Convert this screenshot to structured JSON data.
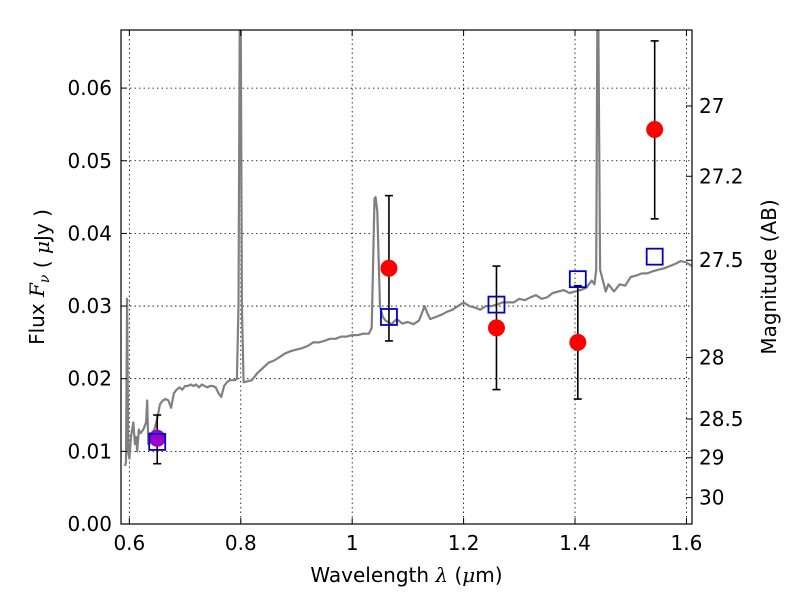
{
  "chart_data": {
    "type": "scatter",
    "xlabel_prefix": "Wavelength",
    "xlabel_symbol": "λ",
    "xlabel_unit_open": "(",
    "xlabel_unit_mu": "μ",
    "xlabel_unit_close": "m)",
    "ylabel_prefix": "Flux",
    "ylabel_symbol": "F",
    "ylabel_subscript": "ν",
    "ylabel_unit_open": "(",
    "ylabel_unit_mu": "μ",
    "ylabel_unit_close": "Jy )",
    "y2label": "Magnitude (AB)",
    "xlim": [
      0.585,
      1.61
    ],
    "ylim": [
      0.0,
      0.068
    ],
    "grid": true,
    "xticks": [
      {
        "value": 0.6,
        "label": "0.6"
      },
      {
        "value": 0.8,
        "label": "0.8"
      },
      {
        "value": 1.0,
        "label": "1"
      },
      {
        "value": 1.2,
        "label": "1.2"
      },
      {
        "value": 1.4,
        "label": "1.4"
      },
      {
        "value": 1.6,
        "label": "1.6"
      }
    ],
    "yticks": [
      {
        "value": 0.0,
        "label": "0.00"
      },
      {
        "value": 0.01,
        "label": "0.01"
      },
      {
        "value": 0.02,
        "label": "0.02"
      },
      {
        "value": 0.03,
        "label": "0.03"
      },
      {
        "value": 0.04,
        "label": "0.04"
      },
      {
        "value": 0.05,
        "label": "0.05"
      },
      {
        "value": 0.06,
        "label": "0.06"
      }
    ],
    "y2ticks": [
      {
        "mag": 27,
        "label": "27"
      },
      {
        "mag": 27.2,
        "label": "27.2"
      },
      {
        "mag": 27.5,
        "label": "27.5"
      },
      {
        "mag": 28,
        "label": "28"
      },
      {
        "mag": 28.5,
        "label": "28.5"
      },
      {
        "mag": 29,
        "label": "29"
      },
      {
        "mag": 30,
        "label": "30"
      }
    ],
    "colors": {
      "spectrum": "#808080",
      "observed": "#ff0000",
      "model": "#0000cc",
      "errorbar": "#000000",
      "blend": "#9900cc"
    },
    "spectrum": {
      "x": [
        0.592,
        0.594,
        0.596,
        0.598,
        0.6,
        0.603,
        0.605,
        0.607,
        0.61,
        0.612,
        0.614,
        0.617,
        0.62,
        0.625,
        0.63,
        0.632,
        0.634,
        0.636,
        0.64,
        0.645,
        0.65,
        0.655,
        0.66,
        0.665,
        0.67,
        0.675,
        0.68,
        0.685,
        0.69,
        0.695,
        0.7,
        0.705,
        0.71,
        0.715,
        0.72,
        0.725,
        0.73,
        0.735,
        0.74,
        0.745,
        0.75,
        0.755,
        0.76,
        0.765,
        0.77,
        0.775,
        0.78,
        0.785,
        0.79,
        0.793,
        0.796,
        0.798,
        0.8,
        0.802,
        0.805,
        0.81,
        0.82,
        0.83,
        0.84,
        0.85,
        0.86,
        0.87,
        0.88,
        0.89,
        0.9,
        0.91,
        0.92,
        0.93,
        0.94,
        0.95,
        0.96,
        0.97,
        0.98,
        0.99,
        1.0,
        1.01,
        1.02,
        1.03,
        1.035,
        1.04,
        1.042,
        1.045,
        1.05,
        1.055,
        1.06,
        1.07,
        1.08,
        1.09,
        1.1,
        1.11,
        1.12,
        1.125,
        1.13,
        1.135,
        1.14,
        1.15,
        1.16,
        1.17,
        1.18,
        1.19,
        1.2,
        1.21,
        1.22,
        1.23,
        1.24,
        1.25,
        1.26,
        1.27,
        1.28,
        1.29,
        1.3,
        1.31,
        1.32,
        1.33,
        1.34,
        1.35,
        1.36,
        1.37,
        1.38,
        1.39,
        1.4,
        1.41,
        1.42,
        1.425,
        1.43,
        1.435,
        1.438,
        1.44,
        1.442,
        1.445,
        1.45,
        1.455,
        1.46,
        1.47,
        1.48,
        1.49,
        1.5,
        1.51,
        1.52,
        1.53,
        1.54,
        1.55,
        1.56,
        1.57,
        1.58,
        1.59,
        1.6,
        1.61
      ],
      "y": [
        0.008,
        0.0085,
        0.031,
        0.01,
        0.009,
        0.012,
        0.013,
        0.014,
        0.011,
        0.012,
        0.01,
        0.013,
        0.0125,
        0.013,
        0.014,
        0.017,
        0.011,
        0.0125,
        0.0125,
        0.013,
        0.0145,
        0.0165,
        0.017,
        0.0172,
        0.017,
        0.016,
        0.018,
        0.0185,
        0.0188,
        0.0185,
        0.019,
        0.019,
        0.0192,
        0.019,
        0.0192,
        0.0188,
        0.0192,
        0.019,
        0.0188,
        0.019,
        0.019,
        0.0188,
        0.018,
        0.0175,
        0.019,
        0.0195,
        0.0198,
        0.0198,
        0.0198,
        0.02,
        0.03,
        0.068,
        0.068,
        0.03,
        0.0195,
        0.0196,
        0.0198,
        0.0208,
        0.0215,
        0.0222,
        0.0225,
        0.023,
        0.0235,
        0.0238,
        0.024,
        0.0242,
        0.0245,
        0.025,
        0.025,
        0.0252,
        0.0255,
        0.0255,
        0.0258,
        0.0258,
        0.026,
        0.026,
        0.0262,
        0.0262,
        0.027,
        0.0448,
        0.045,
        0.043,
        0.03,
        0.0285,
        0.028,
        0.0275,
        0.0282,
        0.0276,
        0.0278,
        0.0275,
        0.028,
        0.029,
        0.03,
        0.029,
        0.0282,
        0.0285,
        0.0288,
        0.0292,
        0.0295,
        0.03,
        0.0305,
        0.03,
        0.0298,
        0.0295,
        0.03,
        0.03,
        0.0302,
        0.0305,
        0.0305,
        0.0305,
        0.031,
        0.0308,
        0.0312,
        0.0315,
        0.031,
        0.0312,
        0.0318,
        0.032,
        0.0322,
        0.0318,
        0.032,
        0.0322,
        0.0325,
        0.033,
        0.0335,
        0.033,
        0.035,
        0.068,
        0.068,
        0.035,
        0.0335,
        0.032,
        0.033,
        0.032,
        0.033,
        0.0328,
        0.034,
        0.0342,
        0.0345,
        0.0345,
        0.0348,
        0.035,
        0.0352,
        0.0355,
        0.0358,
        0.0362,
        0.036,
        0.0355
      ]
    },
    "points": [
      {
        "x": 0.65,
        "observed": 0.0118,
        "err_low": 0.0083,
        "err_high": 0.015,
        "model": 0.0113,
        "blend": true
      },
      {
        "x": 1.066,
        "observed": 0.0352,
        "err_low": 0.0252,
        "err_high": 0.0452,
        "model": 0.0285,
        "blend": false
      },
      {
        "x": 1.259,
        "observed": 0.027,
        "err_low": 0.0185,
        "err_high": 0.0355,
        "model": 0.0302,
        "blend": false
      },
      {
        "x": 1.405,
        "observed": 0.025,
        "err_low": 0.0172,
        "err_high": 0.0328,
        "model": 0.0337,
        "blend": false
      },
      {
        "x": 1.543,
        "observed": 0.0543,
        "err_low": 0.042,
        "err_high": 0.0665,
        "model": 0.0368,
        "blend": false
      }
    ]
  }
}
